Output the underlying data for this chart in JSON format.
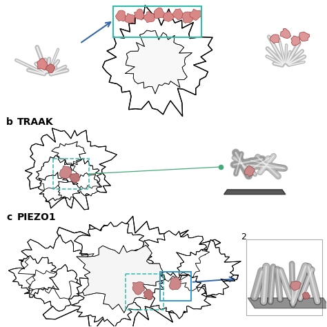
{
  "background_color": "#ffffff",
  "label_b": "b",
  "label_b_text": "TRAAK",
  "label_c": "c",
  "label_c_text": "PIEZO1",
  "label_2": "2",
  "fig_width": 4.74,
  "fig_height": 4.74,
  "dpi": 100,
  "teal_box_color": "#33bbaa",
  "blue_box_color": "#3399cc",
  "arrow_color_blue": "#3366aa",
  "pink_color": "#cc8888",
  "green_line_color": "#44aa77",
  "gray_helix": "#aaaaaa",
  "label_fontsize": 10,
  "label2_fontsize": 8
}
